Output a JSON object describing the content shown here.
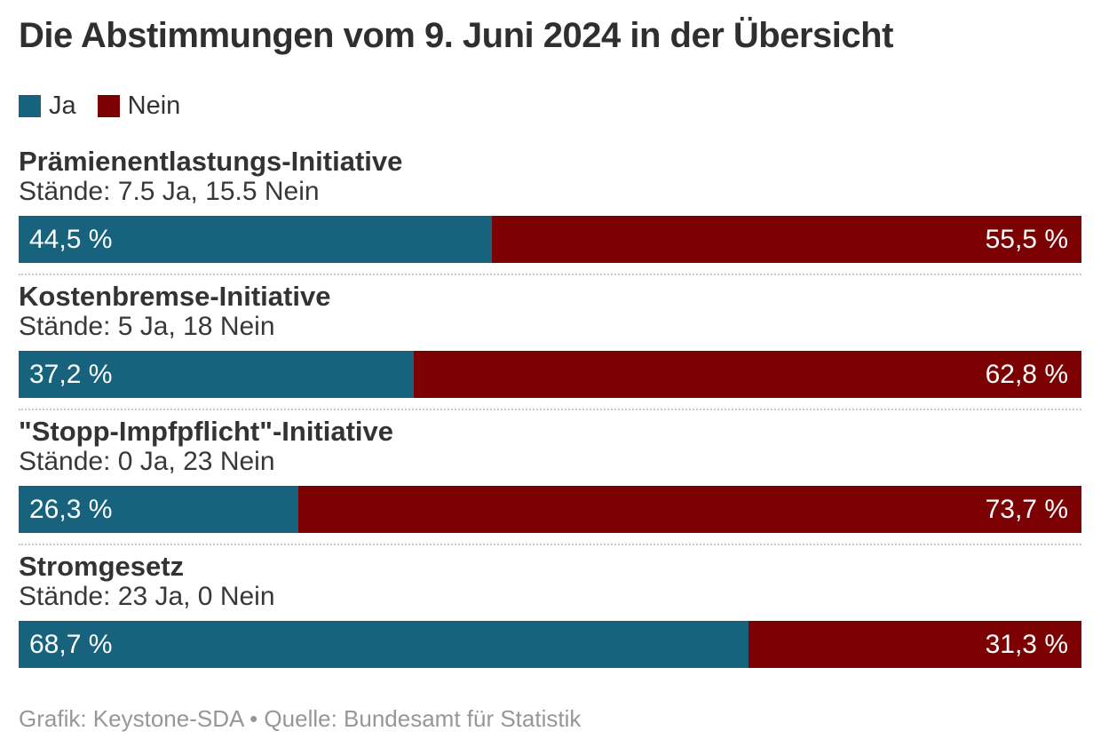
{
  "title": "Die Abstimmungen vom 9. Juni 2024 in der Übersicht",
  "colors": {
    "ja": "#17637E",
    "nein": "#7C0102",
    "text": "#333333",
    "footer_text": "#979797",
    "divider": "#C9C9C9",
    "background": "#FFFFFF",
    "bar_label_text": "#FFFFFF"
  },
  "legend": {
    "items": [
      {
        "label": "Ja",
        "color_key": "ja"
      },
      {
        "label": "Nein",
        "color_key": "nein"
      }
    ]
  },
  "chart_data": {
    "type": "bar",
    "orientation": "horizontal",
    "stacked": true,
    "unit": "%",
    "value_range": [
      0,
      100
    ],
    "series_names": [
      "Ja",
      "Nein"
    ],
    "legend_position": "top-left",
    "items": [
      {
        "name": "Prämienentlastungs-Initiative",
        "staende_line": "Stände: 7.5 Ja, 15.5 Nein",
        "staende_ja": 7.5,
        "staende_nein": 15.5,
        "ja_pct": 44.5,
        "nein_pct": 55.5,
        "ja_label": "44,5 %",
        "nein_label": "55,5 %"
      },
      {
        "name": "Kostenbremse-Initiative",
        "staende_line": "Stände: 5 Ja, 18 Nein",
        "staende_ja": 5,
        "staende_nein": 18,
        "ja_pct": 37.2,
        "nein_pct": 62.8,
        "ja_label": "37,2 %",
        "nein_label": "62,8 %"
      },
      {
        "name": "\"Stopp-Impfpflicht\"-Initiative",
        "staende_line": "Stände: 0 Ja, 23 Nein",
        "staende_ja": 0,
        "staende_nein": 23,
        "ja_pct": 26.3,
        "nein_pct": 73.7,
        "ja_label": "26,3 %",
        "nein_label": "73,7 %"
      },
      {
        "name": "Stromgesetz",
        "staende_line": "Stände: 23 Ja, 0 Nein",
        "staende_ja": 23,
        "staende_nein": 0,
        "ja_pct": 68.7,
        "nein_pct": 31.3,
        "ja_label": "68,7 %",
        "nein_label": "31,3 %"
      }
    ]
  },
  "footer": {
    "credit": "Grafik: Keystone-SDA • Quelle: Bundesamt für Statistik"
  }
}
